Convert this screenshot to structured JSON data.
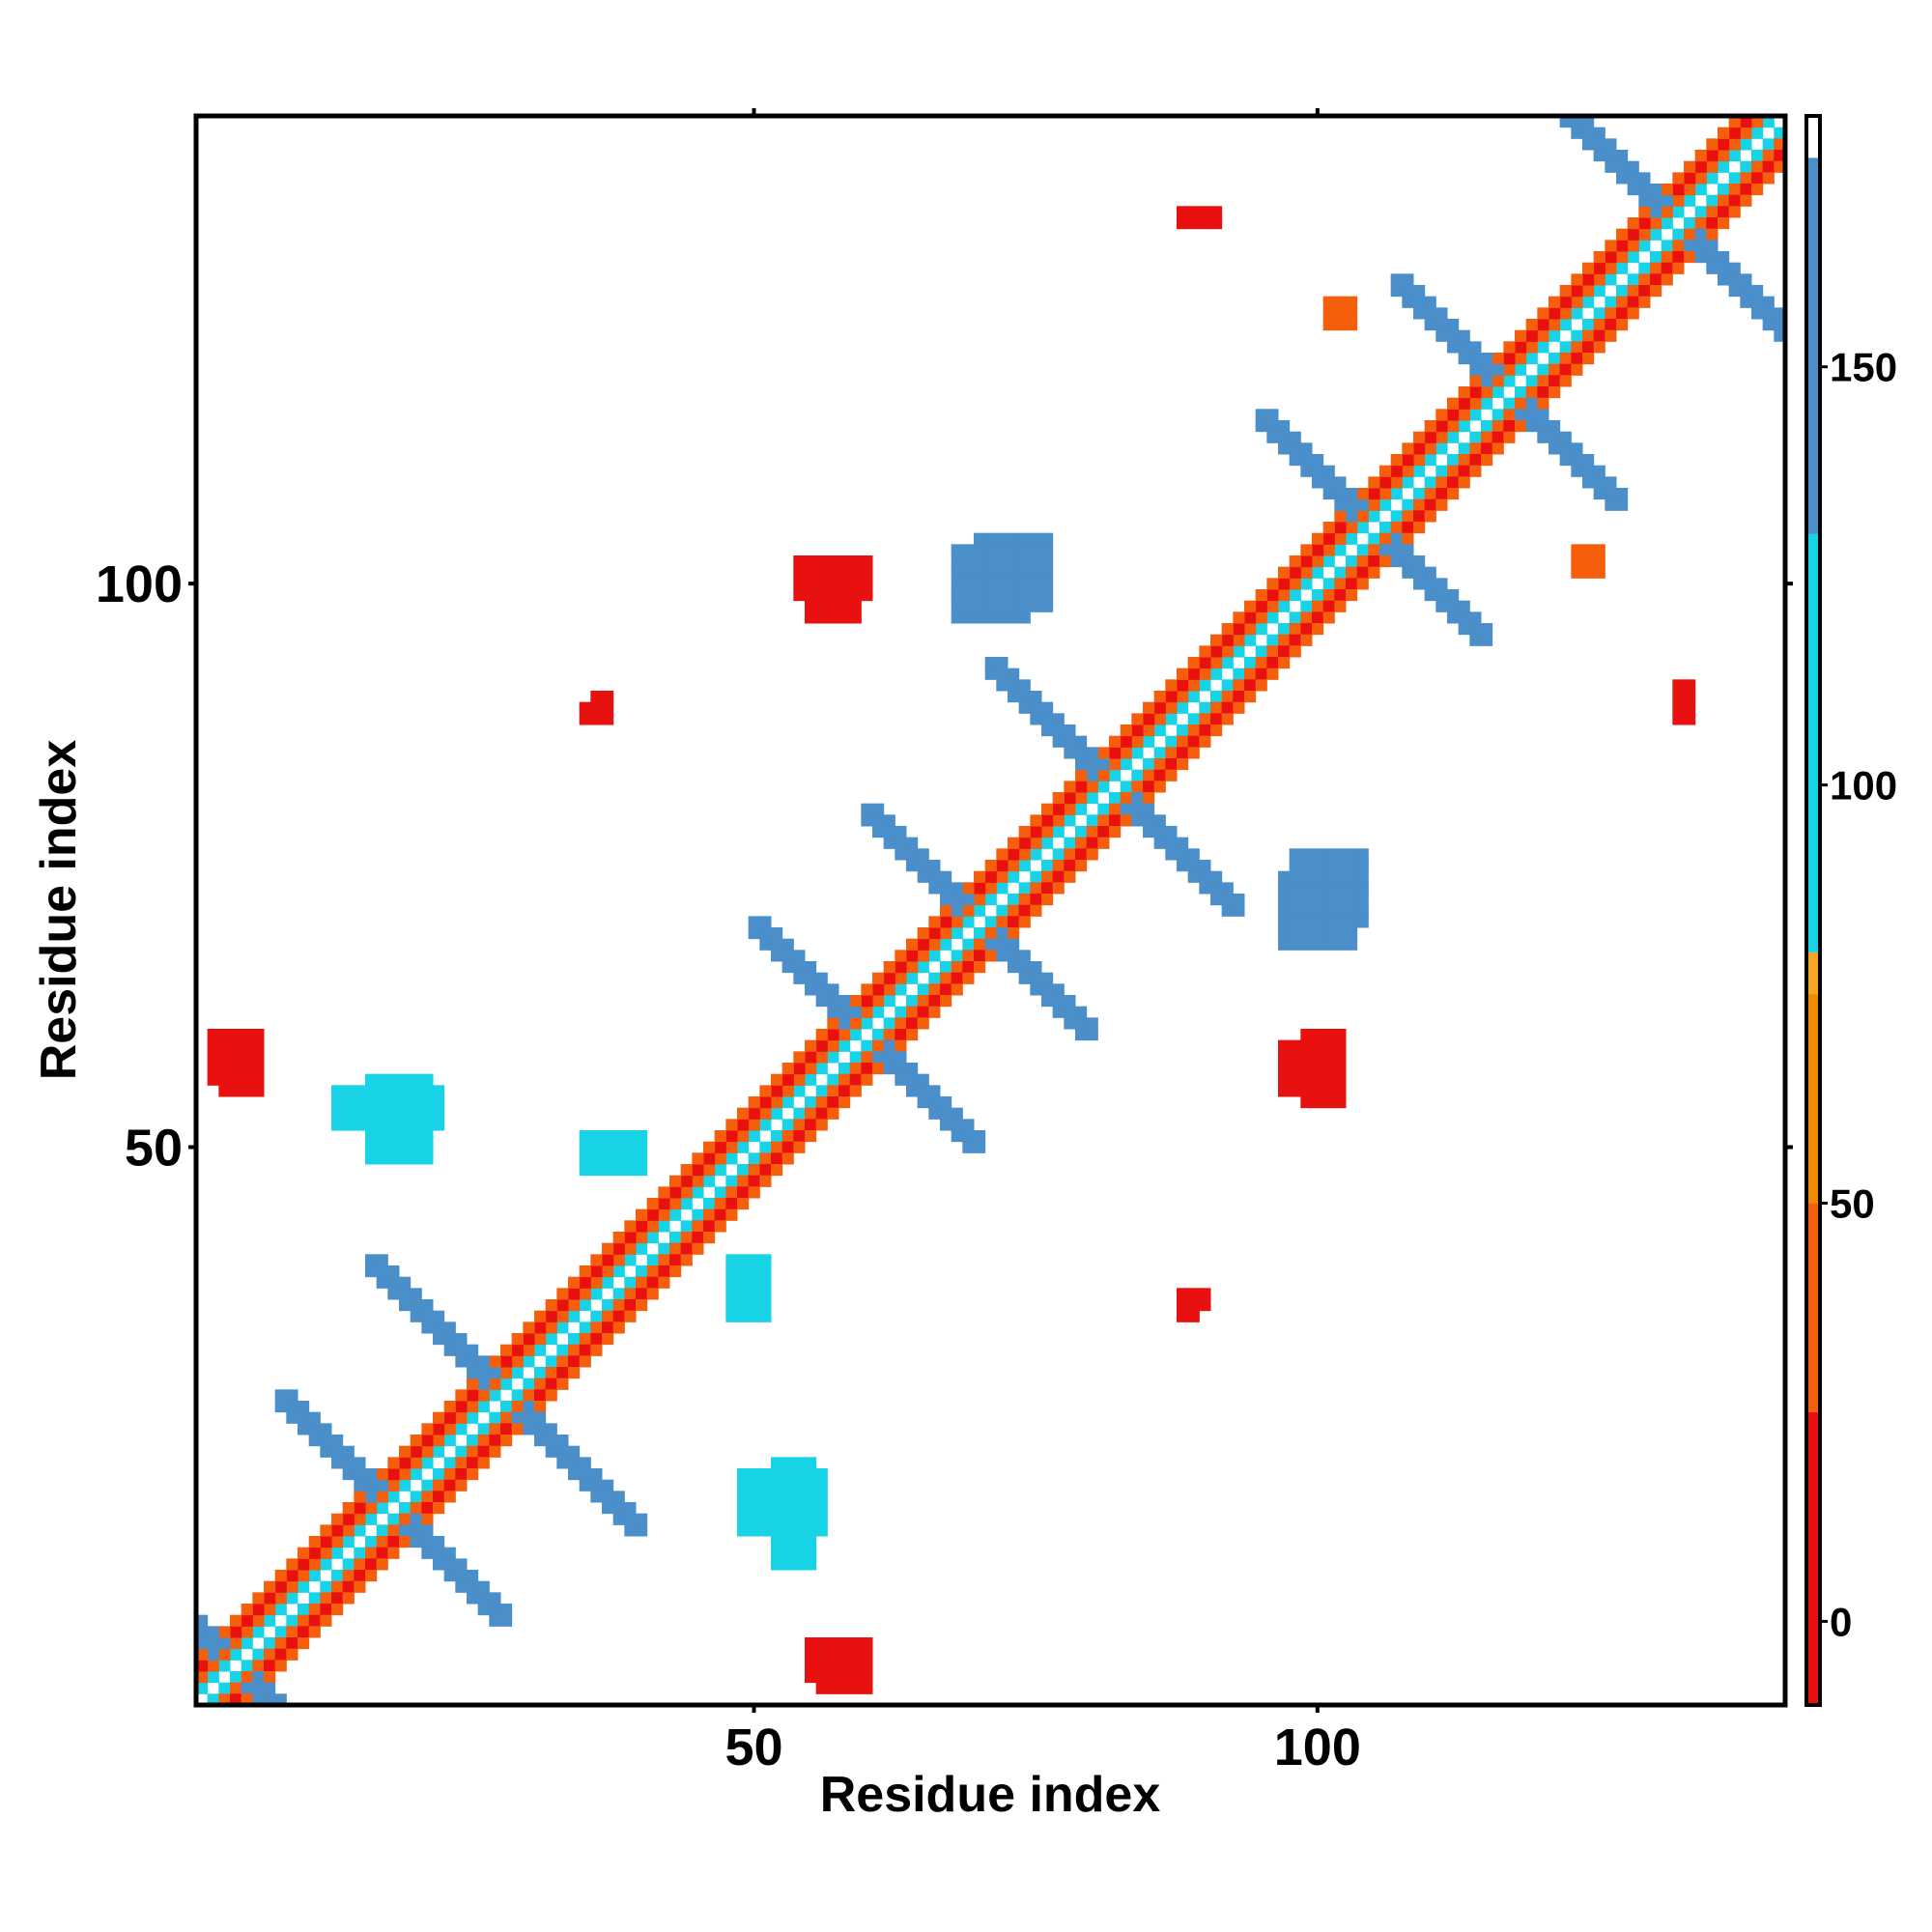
{
  "chart_data": {
    "type": "heatmap",
    "title": "",
    "xlabel": "Residue index",
    "ylabel": "Residue index",
    "n_residues": 141,
    "xlim": [
      1,
      141
    ],
    "ylim": [
      1,
      141
    ],
    "x_ticks": [
      50,
      100
    ],
    "y_ticks": [
      50,
      100
    ],
    "colorbar": {
      "range": [
        -10,
        180
      ],
      "ticks": [
        0,
        50,
        100,
        150
      ],
      "bands": [
        {
          "from": -10,
          "to": 25,
          "color": "#e8110f"
        },
        {
          "from": 25,
          "to": 50,
          "color": "#f55f0c"
        },
        {
          "from": 50,
          "to": 75,
          "color": "#f08a00"
        },
        {
          "from": 75,
          "to": 80,
          "color": "#f5a623"
        },
        {
          "from": 80,
          "to": 130,
          "color": "#18d3e6"
        },
        {
          "from": 130,
          "to": 175,
          "color": "#4a8fc9"
        },
        {
          "from": 175,
          "to": 180,
          "color": "#ffffff"
        }
      ]
    },
    "diagonal_band": [
      {
        "offset": 1,
        "value": 110
      },
      {
        "offset": 2,
        "value": 35
      },
      {
        "offset": 3,
        "value": 10
      },
      {
        "offset": 4,
        "value": 40
      }
    ],
    "antidiagonal_arms": [
      {
        "cx": 4,
        "cy": 4,
        "length": 8,
        "value": 150
      },
      {
        "cx": 18,
        "cy": 18,
        "length": 10,
        "value": 150
      },
      {
        "cx": 28,
        "cy": 28,
        "length": 12,
        "value": 150
      },
      {
        "cx": 60,
        "cy": 60,
        "length": 10,
        "value": 150
      },
      {
        "cx": 70,
        "cy": 70,
        "length": 10,
        "value": 150
      },
      {
        "cx": 82,
        "cy": 82,
        "length": 11,
        "value": 150
      },
      {
        "cx": 105,
        "cy": 105,
        "length": 10,
        "value": 150
      },
      {
        "cx": 117,
        "cy": 117,
        "length": 10,
        "value": 150
      },
      {
        "cx": 132,
        "cy": 132,
        "length": 11,
        "value": 150
      }
    ],
    "off_diagonal_patches": [
      {
        "x": 55,
        "y": 3,
        "w": 6,
        "h": 4,
        "value": 10
      },
      {
        "x": 54,
        "y": 99,
        "w": 7,
        "h": 4,
        "value": 10
      },
      {
        "x": 2,
        "y": 56,
        "w": 5,
        "h": 5,
        "value": 10
      },
      {
        "x": 97,
        "y": 55,
        "w": 6,
        "h": 5,
        "value": 10
      },
      {
        "x": 13,
        "y": 52,
        "w": 10,
        "h": 4,
        "value": 130
      },
      {
        "x": 49,
        "y": 16,
        "w": 8,
        "h": 6,
        "value": 130
      },
      {
        "x": 35,
        "y": 48,
        "w": 4,
        "h": 4,
        "value": 100
      },
      {
        "x": 48,
        "y": 37,
        "w": 4,
        "h": 4,
        "value": 100
      },
      {
        "x": 68,
        "y": 97,
        "w": 7,
        "h": 7,
        "value": 150
      },
      {
        "x": 98,
        "y": 70,
        "w": 7,
        "h": 7,
        "value": 150
      },
      {
        "x": 88,
        "y": 36,
        "w": 3,
        "h": 2,
        "value": 10
      },
      {
        "x": 35,
        "y": 88,
        "w": 3,
        "h": 2,
        "value": 10
      },
      {
        "x": 132,
        "y": 88,
        "w": 2,
        "h": 4,
        "value": 10
      },
      {
        "x": 88,
        "y": 132,
        "w": 4,
        "h": 2,
        "value": 10
      },
      {
        "x": 123,
        "y": 101,
        "w": 3,
        "h": 3,
        "value": 40
      },
      {
        "x": 101,
        "y": 123,
        "w": 3,
        "h": 3,
        "value": 40
      }
    ]
  }
}
